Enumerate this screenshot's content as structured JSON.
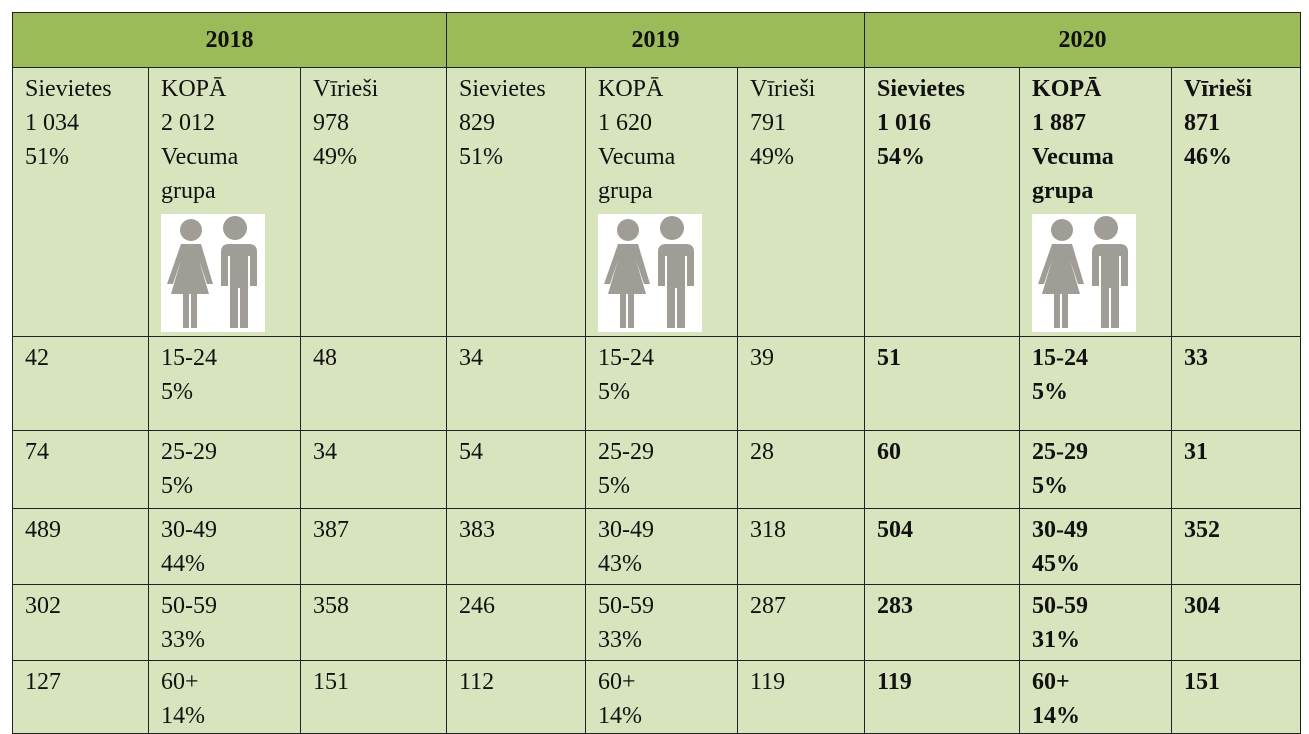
{
  "table": {
    "headers": [
      "2018",
      "2019",
      "2020"
    ],
    "summary": [
      [
        "Sievietes",
        "1 034",
        "51%"
      ],
      [
        "KOPĀ",
        "2 012",
        "Vecuma",
        "grupa"
      ],
      [
        "Vīrieši",
        "978",
        "49%"
      ],
      [
        "Sievietes",
        "829",
        "51%"
      ],
      [
        "KOPĀ",
        "1 620",
        "Vecuma",
        "grupa"
      ],
      [
        "Vīrieši",
        "791",
        "49%"
      ],
      [
        "Sievietes",
        "1 016",
        "54%"
      ],
      [
        "KOPĀ",
        "1 887",
        "Vecuma",
        "grupa"
      ],
      [
        "Vīrieši",
        "871",
        "46%"
      ]
    ],
    "rows": [
      [
        [
          "42"
        ],
        [
          "15-24",
          "5%"
        ],
        [
          "48"
        ],
        [
          "34"
        ],
        [
          "15-24",
          "5%"
        ],
        [
          "39"
        ],
        [
          "51"
        ],
        [
          "15-24",
          "5%"
        ],
        [
          "33"
        ]
      ],
      [
        [
          "74"
        ],
        [
          "25-29",
          "5%"
        ],
        [
          "34"
        ],
        [
          "54"
        ],
        [
          "25-29",
          "5%"
        ],
        [
          "28"
        ],
        [
          "60"
        ],
        [
          "25-29",
          "5%"
        ],
        [
          "31"
        ]
      ],
      [
        [
          "489"
        ],
        [
          "30-49",
          "44%"
        ],
        [
          "387"
        ],
        [
          "383"
        ],
        [
          "30-49",
          "43%"
        ],
        [
          "318"
        ],
        [
          "504"
        ],
        [
          "30-49",
          "45%"
        ],
        [
          "352"
        ]
      ],
      [
        [
          "302"
        ],
        [
          "50-59",
          "33%"
        ],
        [
          "358"
        ],
        [
          "246"
        ],
        [
          "50-59",
          "33%"
        ],
        [
          "287"
        ],
        [
          "283"
        ],
        [
          "50-59",
          "31%"
        ],
        [
          "304"
        ]
      ],
      [
        [
          "127"
        ],
        [
          "60+",
          "14%"
        ],
        [
          "151"
        ],
        [
          "112"
        ],
        [
          "60+",
          "14%"
        ],
        [
          "119"
        ],
        [
          "119"
        ],
        [
          "60+",
          "14%"
        ],
        [
          "151"
        ]
      ]
    ]
  }
}
